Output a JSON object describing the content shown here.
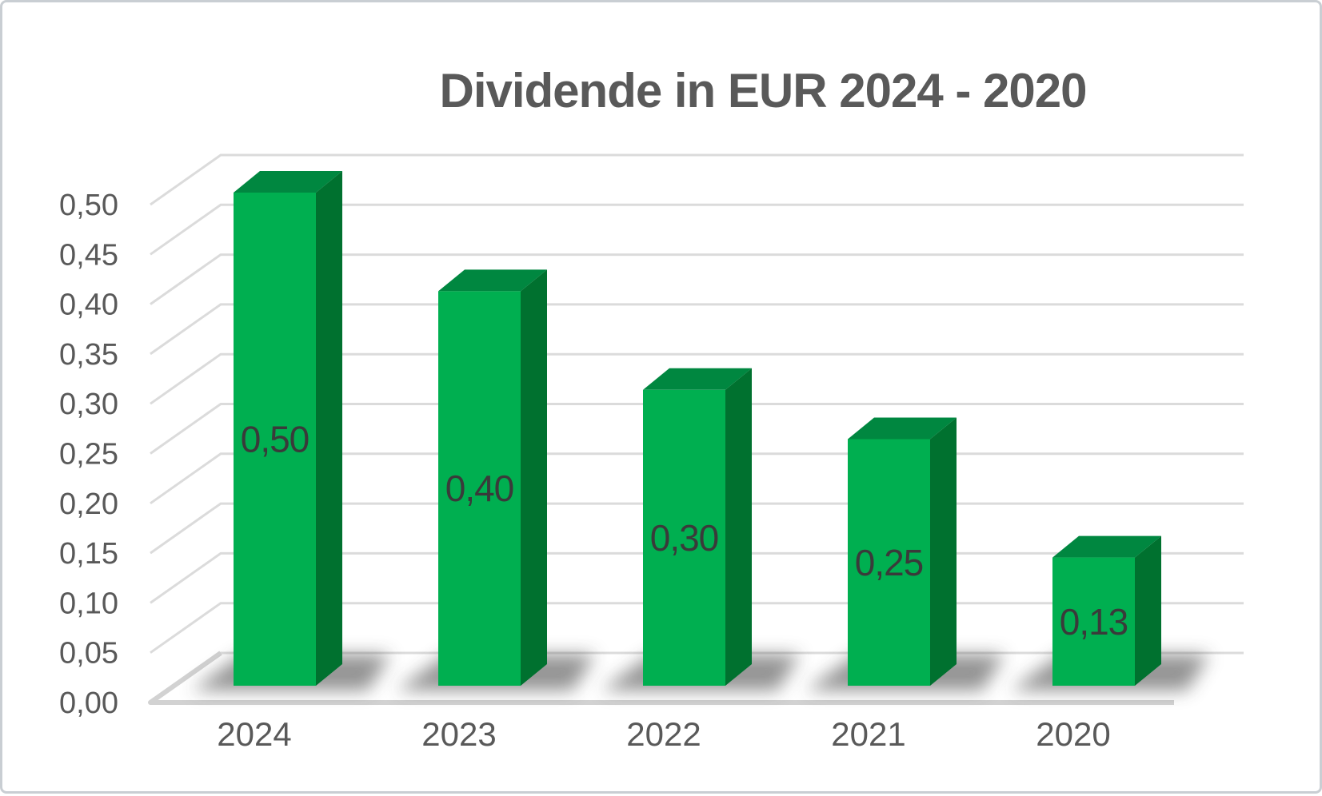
{
  "chart_data": {
    "type": "bar",
    "projection": "3d",
    "title": "Dividende in EUR 2024 - 2020",
    "categories": [
      "2024",
      "2023",
      "2022",
      "2021",
      "2020"
    ],
    "values": [
      0.5,
      0.4,
      0.3,
      0.25,
      0.13
    ],
    "data_labels": [
      "0,50",
      "0,40",
      "0,30",
      "0,25",
      "0,13"
    ],
    "y_ticks": [
      "0,00",
      "0,05",
      "0,10",
      "0,15",
      "0,20",
      "0,25",
      "0,30",
      "0,35",
      "0,40",
      "0,45",
      "0,50"
    ],
    "ylim": [
      0,
      0.5
    ],
    "xlabel": "",
    "ylabel": "",
    "grid": true,
    "legend": false,
    "number_format": "comma-decimal (de-DE)",
    "colors": {
      "bar_front": "#00AF50",
      "bar_top": "#008740",
      "bar_side": "#00712F",
      "gridline": "#DBDBDB",
      "floor_edge": "#D2D2D2",
      "axis_text": "#595959",
      "data_label_text": "#3A3A3A",
      "title_text": "#595959",
      "shadow": "#3C3C3C",
      "background": "#FFFFFF",
      "frame_border": "#C9CED3"
    }
  }
}
